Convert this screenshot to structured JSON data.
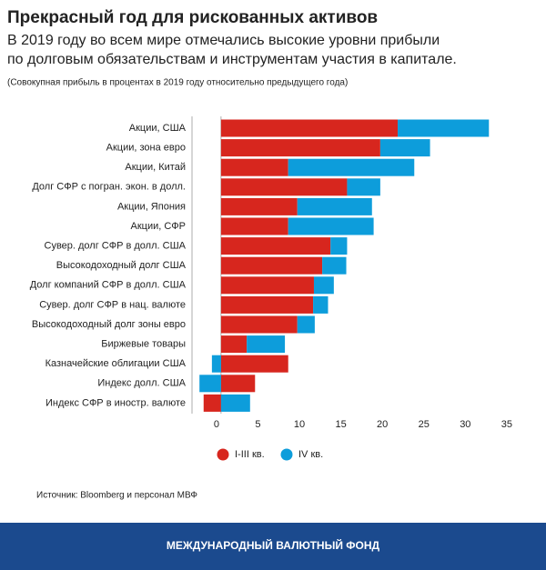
{
  "chart_data": {
    "type": "stacked_barh",
    "title": "Прекрасный год для рискованных активов",
    "subtitle": [
      "В 2019 году во всем мире отмечались высокие уровни прибыли",
      "по долговым обязательствам и инструментам участия в капитале."
    ],
    "note": "(Совокупная прибыль в процентах в 2019 году относительно предыдущего года)",
    "categories": [
      "Акции, США",
      "Акции, зона евро",
      "Акции, Китай",
      "Долг СФР с погран. экон. в долл.",
      "Акции, Япония",
      "Акции, СФР",
      "Сувер. долг СФР в долл. США",
      "Высокодоходный долг США",
      "Долг компаний СФР в долл. США",
      "Сувер. долг СФР в нац. валюте",
      "Высокодоходный долг зоны евро",
      "Биржевые товары",
      "Казначейские облигации США",
      "Индекс долл. США",
      "Индекс СФР в иностр. валюте"
    ],
    "series": [
      {
        "name": "I-III кв.",
        "color": "#d7261e",
        "values": [
          21.3,
          19.2,
          8.1,
          15.2,
          9.2,
          8.1,
          13.2,
          12.2,
          11.2,
          11.1,
          9.2,
          3.1,
          8.1,
          4.1,
          -2.1
        ]
      },
      {
        "name": "IV кв.",
        "color": "#0d9ddb",
        "values": [
          11.0,
          6.0,
          15.2,
          4.0,
          9.0,
          10.3,
          2.0,
          2.9,
          2.4,
          1.8,
          2.1,
          4.6,
          -1.1,
          -2.6,
          3.5
        ]
      }
    ],
    "xlim": [
      -3.5,
      36
    ],
    "xticks": [
      0,
      5,
      10,
      15,
      20,
      25,
      30,
      35
    ],
    "legend": "bottom",
    "source": "Источник: Bloomberg и персонал МВФ"
  },
  "footer": "МЕЖДУНАРОДНЫЙ ВАЛЮТНЫЙ ФОНД"
}
